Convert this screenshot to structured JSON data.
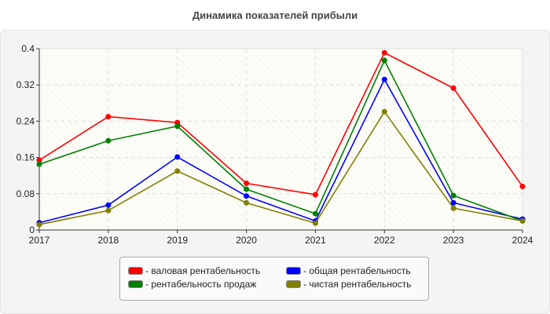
{
  "chart_data": {
    "type": "line",
    "title": "Динамика показателей прибыли",
    "x": [
      "2017",
      "2018",
      "2019",
      "2020",
      "2021",
      "2022",
      "2023",
      "2024"
    ],
    "ylim": [
      0,
      0.4
    ],
    "yticks": [
      "0",
      "0.08",
      "0.16",
      "0.24",
      "0.32",
      "0.4"
    ],
    "grid": true,
    "legend_placement": "bottom",
    "series": [
      {
        "name": "- валовая рентабельность",
        "color": "#ff0000",
        "values": [
          0.154,
          0.25,
          0.237,
          0.103,
          0.078,
          0.391,
          0.313,
          0.096
        ]
      },
      {
        "name": "- общая рентабельность",
        "color": "#0000ff",
        "values": [
          0.016,
          0.055,
          0.161,
          0.075,
          0.02,
          0.332,
          0.06,
          0.024
        ]
      },
      {
        "name": "- рентабельность продаж",
        "color": "#008000",
        "values": [
          0.145,
          0.197,
          0.229,
          0.09,
          0.036,
          0.374,
          0.076,
          0.02
        ]
      },
      {
        "name": "- чистая рентабельность",
        "color": "#808000",
        "values": [
          0.012,
          0.043,
          0.13,
          0.06,
          0.015,
          0.261,
          0.048,
          0.02
        ]
      }
    ]
  }
}
